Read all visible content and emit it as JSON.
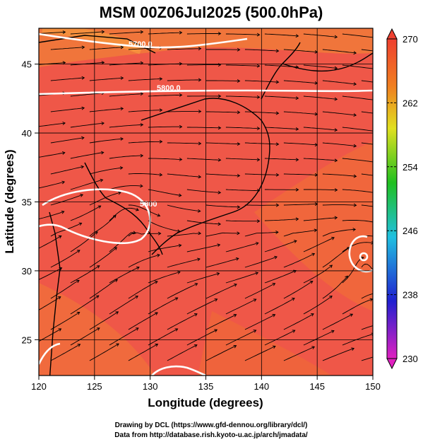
{
  "chart_data": {
    "type": "heatmap",
    "title": "MSM 00Z06Jul2025 (500.0hPa)",
    "xlabel": "Longitude (degrees)",
    "ylabel": "Latitude  (degrees)",
    "xlim": [
      120,
      150
    ],
    "ylim": [
      22.4,
      47.6
    ],
    "x_ticks": [
      120,
      125,
      130,
      135,
      140,
      145,
      150
    ],
    "y_ticks": [
      25,
      30,
      35,
      40,
      45
    ],
    "colorbar": {
      "min": 230,
      "max": 270,
      "ticks": [
        270,
        262,
        254,
        246,
        238,
        230
      ],
      "colors": [
        "#e020c0",
        "#2020d0",
        "#20c0e0",
        "#20c020",
        "#e0e020",
        "#f08020",
        "#ef4030"
      ]
    },
    "contour_labels": [
      "5700.0",
      "5800.0",
      "5800"
    ],
    "background_color": "#ef5748",
    "overlay": "streamlines of wind",
    "coastline_color": "#000000",
    "grid": true
  },
  "credits": {
    "line1": "Drawing by DCL (https://www.gfd-dennou.org/library/dcl/)",
    "line2": "Data from http://database.rish.kyoto-u.ac.jp/arch/jmadata/"
  }
}
